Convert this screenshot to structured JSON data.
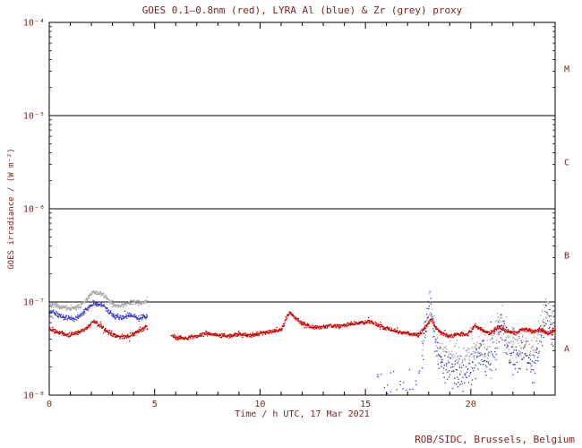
{
  "footer": {
    "credit": "ROB/SIDC, Brussels, Belgium"
  },
  "colors": {
    "text": "#7d1f1f",
    "axis": "#000000",
    "goes_red": "#cc0000",
    "lyra_al_blue": "#3b3bc4",
    "lyra_zr_grey": "#a3a3a3",
    "background": "#ffffff"
  },
  "chart_data": {
    "type": "scatter",
    "title": "GOES 0.1–0.8nm (red), LYRA Al (blue) & Zr (grey) proxy",
    "xlabel": "Time / h UTC, 17 Mar 2021",
    "ylabel": "GOES irradiance / (W m⁻²)",
    "xlim": [
      0,
      24
    ],
    "ylim_log10": [
      -8,
      -4
    ],
    "x_major_ticks": [
      0,
      5,
      10,
      15,
      20
    ],
    "x_minor_step_h": 1,
    "grid": false,
    "legend_position": "in-title",
    "y_ticks": [
      {
        "log10": -8,
        "label": "10⁻⁸"
      },
      {
        "log10": -7,
        "label": "10⁻⁷"
      },
      {
        "log10": -6,
        "label": "10⁻⁶"
      },
      {
        "log10": -5,
        "label": "10⁻⁵"
      },
      {
        "log10": -4,
        "label": "10⁻⁴"
      }
    ],
    "class_lines_log10": [
      -7,
      -6,
      -5
    ],
    "class_labels": [
      {
        "label": "M",
        "log10_y": -4.5
      },
      {
        "label": "C",
        "log10_y": -5.5
      },
      {
        "label": "B",
        "log10_y": -6.5
      },
      {
        "label": "A",
        "log10_y": -7.5
      }
    ],
    "series": [
      {
        "name": "GOES 0.1-0.8nm",
        "color": "#cc0000",
        "segments": [
          {
            "noise_dex": 0.03,
            "step_h": 0.03,
            "points": [
              [
                0,
                5.2e-08
              ],
              [
                0.3,
                4.8e-08
              ],
              [
                0.6,
                4.6e-08
              ],
              [
                1.0,
                4.4e-08
              ],
              [
                1.3,
                4.6e-08
              ],
              [
                1.6,
                5e-08
              ],
              [
                1.9,
                5.6e-08
              ],
              [
                2.1,
                6.2e-08
              ],
              [
                2.3,
                5.8e-08
              ],
              [
                2.6,
                5.2e-08
              ],
              [
                2.9,
                4.6e-08
              ],
              [
                3.2,
                4.3e-08
              ],
              [
                3.6,
                4.2e-08
              ],
              [
                4.0,
                4.5e-08
              ],
              [
                4.3,
                5e-08
              ],
              [
                4.65,
                5.4e-08
              ]
            ]
          },
          {
            "noise_dex": 0.025,
            "step_h": 0.03,
            "points": [
              [
                5.8,
                4.3e-08
              ],
              [
                6.3,
                4.1e-08
              ],
              [
                7.0,
                4.3e-08
              ],
              [
                7.5,
                4.6e-08
              ],
              [
                8.0,
                4.4e-08
              ],
              [
                8.5,
                4.3e-08
              ],
              [
                9.0,
                4.5e-08
              ],
              [
                9.5,
                4.4e-08
              ],
              [
                10.0,
                4.6e-08
              ],
              [
                10.5,
                4.8e-08
              ],
              [
                11.0,
                5e-08
              ],
              [
                11.2,
                6.5e-08
              ],
              [
                11.4,
                7.8e-08
              ],
              [
                11.6,
                7e-08
              ],
              [
                11.9,
                6e-08
              ],
              [
                12.3,
                5.5e-08
              ],
              [
                12.8,
                5.3e-08
              ],
              [
                13.3,
                5.6e-08
              ],
              [
                13.8,
                5.5e-08
              ],
              [
                14.3,
                5.8e-08
              ],
              [
                14.8,
                6e-08
              ],
              [
                15.2,
                6.2e-08
              ],
              [
                15.6,
                5.6e-08
              ],
              [
                16.0,
                5.2e-08
              ],
              [
                16.5,
                4.8e-08
              ],
              [
                17.0,
                4.6e-08
              ],
              [
                17.5,
                4.4e-08
              ],
              [
                17.9,
                5.5e-08
              ],
              [
                18.1,
                6.5e-08
              ],
              [
                18.3,
                5.5e-08
              ],
              [
                18.6,
                4.6e-08
              ],
              [
                19.0,
                4.3e-08
              ],
              [
                19.4,
                4.5e-08
              ],
              [
                19.8,
                4.4e-08
              ],
              [
                20.2,
                5.6e-08
              ],
              [
                20.5,
                5e-08
              ],
              [
                20.9,
                4.6e-08
              ],
              [
                21.3,
                5.4e-08
              ],
              [
                21.7,
                4.9e-08
              ],
              [
                22.1,
                4.6e-08
              ],
              [
                22.5,
                5.2e-08
              ],
              [
                22.9,
                4.8e-08
              ],
              [
                23.3,
                5e-08
              ],
              [
                23.7,
                4.6e-08
              ],
              [
                24.0,
                5e-08
              ]
            ]
          }
        ]
      },
      {
        "name": "LYRA Al proxy",
        "color": "#3b3bc4",
        "segments": [
          {
            "noise_dex": 0.035,
            "step_h": 0.03,
            "points": [
              [
                0,
                8e-08
              ],
              [
                0.3,
                7.5e-08
              ],
              [
                0.6,
                7e-08
              ],
              [
                0.9,
                6.8e-08
              ],
              [
                1.2,
                6.6e-08
              ],
              [
                1.5,
                7.2e-08
              ],
              [
                1.8,
                8.5e-08
              ],
              [
                2.1,
                9.8e-08
              ],
              [
                2.3,
                9.2e-08
              ],
              [
                2.5,
                9.6e-08
              ],
              [
                2.8,
                8e-08
              ],
              [
                3.1,
                7e-08
              ],
              [
                3.4,
                6.8e-08
              ],
              [
                3.7,
                7.2e-08
              ],
              [
                4.0,
                7e-08
              ],
              [
                4.3,
                6.6e-08
              ],
              [
                4.65,
                7e-08
              ]
            ]
          },
          {
            "noise_dex": 0.25,
            "step_h": 0.15,
            "points": [
              [
                15.6,
                1.2e-08
              ],
              [
                16.4,
                1.4e-08
              ],
              [
                17.2,
                1.2e-08
              ],
              [
                17.6,
                1.8e-08
              ]
            ]
          },
          {
            "noise_dex": 0.22,
            "step_h": 0.04,
            "points": [
              [
                17.7,
                2.5e-08
              ],
              [
                17.95,
                9e-08
              ],
              [
                18.05,
                1.1e-07
              ],
              [
                18.2,
                5e-08
              ],
              [
                18.5,
                2.5e-08
              ],
              [
                18.8,
                2e-08
              ],
              [
                19.2,
                1.8e-08
              ],
              [
                19.6,
                1.6e-08
              ],
              [
                20.0,
                2e-08
              ],
              [
                20.4,
                2.8e-08
              ],
              [
                20.8,
                2.2e-08
              ],
              [
                21.2,
                3.5e-08
              ],
              [
                21.5,
                6e-08
              ],
              [
                21.8,
                3e-08
              ],
              [
                22.2,
                2.2e-08
              ],
              [
                22.6,
                2.8e-08
              ],
              [
                23.0,
                2e-08
              ],
              [
                23.3,
                4e-08
              ],
              [
                23.6,
                8e-08
              ],
              [
                23.9,
                4e-08
              ]
            ]
          }
        ]
      },
      {
        "name": "LYRA Zr proxy",
        "color": "#a3a3a3",
        "segments": [
          {
            "noise_dex": 0.03,
            "step_h": 0.03,
            "points": [
              [
                0,
                9.5e-08
              ],
              [
                0.3,
                9.2e-08
              ],
              [
                0.6,
                8.8e-08
              ],
              [
                0.9,
                8.6e-08
              ],
              [
                1.2,
                8.5e-08
              ],
              [
                1.5,
                9.2e-08
              ],
              [
                1.8,
                1.08e-07
              ],
              [
                2.1,
                1.28e-07
              ],
              [
                2.3,
                1.2e-07
              ],
              [
                2.5,
                1.25e-07
              ],
              [
                2.8,
                1.05e-07
              ],
              [
                3.1,
                9.2e-08
              ],
              [
                3.4,
                9e-08
              ],
              [
                3.7,
                9.6e-08
              ],
              [
                4.0,
                1e-07
              ],
              [
                4.3,
                9.8e-08
              ],
              [
                4.65,
                1.02e-07
              ]
            ]
          },
          {
            "noise_dex": 0.2,
            "step_h": 0.04,
            "points": [
              [
                17.7,
                3.5e-08
              ],
              [
                17.95,
                8e-08
              ],
              [
                18.05,
                1e-07
              ],
              [
                18.2,
                5.5e-08
              ],
              [
                18.5,
                3.5e-08
              ],
              [
                18.8,
                3e-08
              ],
              [
                19.2,
                2.6e-08
              ],
              [
                19.6,
                2.4e-08
              ],
              [
                20.0,
                2.8e-08
              ],
              [
                20.4,
                3.6e-08
              ],
              [
                20.8,
                3e-08
              ],
              [
                21.2,
                5e-08
              ],
              [
                21.5,
                7e-08
              ],
              [
                21.8,
                4e-08
              ],
              [
                22.2,
                3.2e-08
              ],
              [
                22.6,
                4e-08
              ],
              [
                23.0,
                3e-08
              ],
              [
                23.3,
                5.5e-08
              ],
              [
                23.6,
                9e-08
              ],
              [
                23.9,
                5e-08
              ]
            ]
          }
        ]
      }
    ]
  }
}
